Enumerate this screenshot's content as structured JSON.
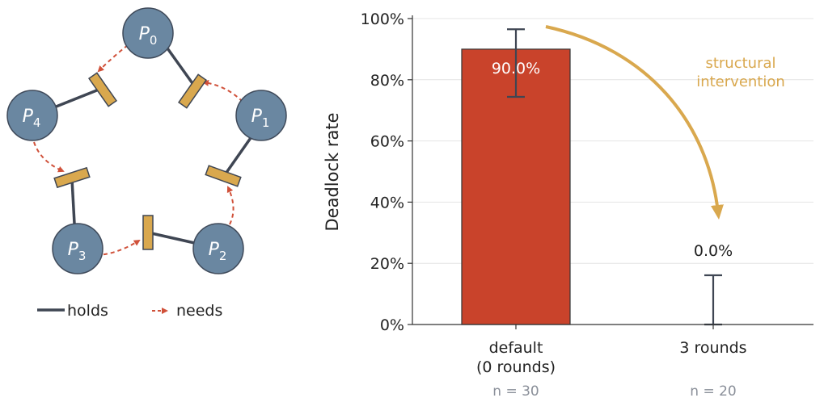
{
  "diagram": {
    "processes": [
      {
        "base": "P",
        "sub": "0"
      },
      {
        "base": "P",
        "sub": "1"
      },
      {
        "base": "P",
        "sub": "2"
      },
      {
        "base": "P",
        "sub": "3"
      },
      {
        "base": "P",
        "sub": "4"
      }
    ],
    "legend": {
      "holds_label": "holds",
      "needs_label": "needs"
    },
    "colors": {
      "process": "#6a87a1",
      "process_stroke": "#3f4a5a",
      "fork": "#d9a84e",
      "hold": "#3f4653",
      "need": "#d0513a"
    }
  },
  "chart_data": {
    "type": "bar",
    "categories": [
      "default\n(0 rounds)",
      "3 rounds"
    ],
    "sample_sizes": [
      "n = 30",
      "n = 20"
    ],
    "values": [
      90.0,
      0.0
    ],
    "value_labels": [
      "90.0%",
      "0.0%"
    ],
    "error_bars": [
      [
        74.4,
        96.5
      ],
      [
        0.0,
        16.1
      ]
    ],
    "ylabel": "Deadlock rate",
    "ylim": [
      0,
      100
    ],
    "yticks": [
      "0%",
      "20%",
      "40%",
      "60%",
      "80%",
      "100%"
    ],
    "grid": true,
    "annotation": "structural\nintervention",
    "colors": {
      "bar": "#c9432b",
      "annotation": "#d9a84e",
      "error": "#3f4653"
    }
  }
}
